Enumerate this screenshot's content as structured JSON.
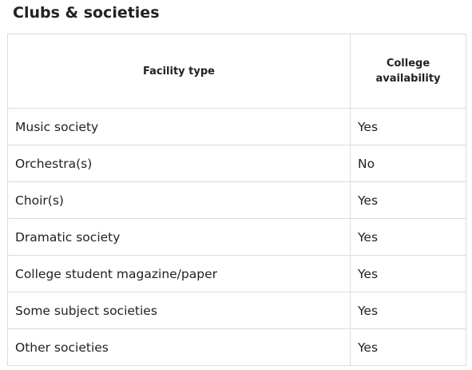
{
  "title": "Clubs & societies",
  "table": {
    "headers": {
      "facility": "Facility type",
      "availability_line1": "College",
      "availability_line2": "availability"
    },
    "rows": [
      {
        "facility": "Music society",
        "availability": "Yes"
      },
      {
        "facility": "Orchestra(s)",
        "availability": "No"
      },
      {
        "facility": "Choir(s)",
        "availability": "Yes"
      },
      {
        "facility": "Dramatic society",
        "availability": "Yes"
      },
      {
        "facility": "College student magazine/paper",
        "availability": "Yes"
      },
      {
        "facility": "Some subject societies",
        "availability": "Yes"
      },
      {
        "facility": "Other societies",
        "availability": "Yes"
      }
    ]
  }
}
